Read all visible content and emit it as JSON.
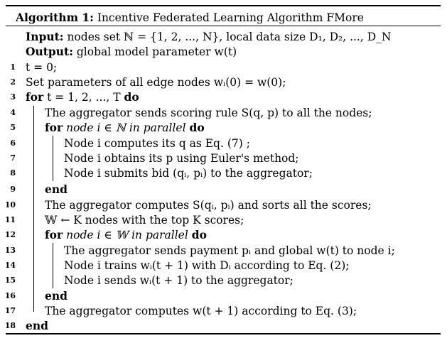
{
  "algorithm": {
    "label": "Algorithm 1:",
    "title": "Incentive Federated Learning Algorithm FMore",
    "input_kw": "Input:",
    "input_text": "nodes set ℕ = {1, 2, ..., N}, local data size D₁, D₂, ..., D_N",
    "output_kw": "Output:",
    "output_text": "global model parameter w(t)",
    "lines": [
      {
        "n": "1",
        "text": "t = 0;"
      },
      {
        "n": "2",
        "text": "Set parameters of all edge nodes wᵢ(0) = w(0);"
      },
      {
        "n": "3",
        "kw": "for",
        "text": "t = 1, 2, ..., T",
        "kw2": "do"
      },
      {
        "n": "4",
        "text": "The aggregator sends scoring rule S(q, p) to all the nodes;"
      },
      {
        "n": "5",
        "kw": "for",
        "text": "node i ∈ ℕ in parallel",
        "kw2": "do"
      },
      {
        "n": "6",
        "text": "Node i computes its q as Eq. (7) ;"
      },
      {
        "n": "7",
        "text": "Node i obtains its p using Euler's method;"
      },
      {
        "n": "8",
        "text": "Node i submits bid (qᵢ, pᵢ) to the aggregator;"
      },
      {
        "n": "9",
        "kw": "end"
      },
      {
        "n": "10",
        "text": "The aggregator computes S(qᵢ, pᵢ) and sorts all the scores;"
      },
      {
        "n": "11",
        "text": "𝕎 ← K nodes with the top K scores;"
      },
      {
        "n": "12",
        "kw": "for",
        "text": "node i ∈ 𝕎 in parallel",
        "kw2": "do"
      },
      {
        "n": "13",
        "text": "The aggregator sends payment pᵢ and global w(t) to node i;"
      },
      {
        "n": "14",
        "text": "Node i trains wᵢ(t + 1) with Dᵢ according to Eq. (2);"
      },
      {
        "n": "15",
        "text": "Node i sends wᵢ(t + 1) to the aggregator;"
      },
      {
        "n": "16",
        "kw": "end"
      },
      {
        "n": "17",
        "text": "The aggregator computes w(t + 1) according to Eq. (3);"
      },
      {
        "n": "18",
        "kw": "end"
      }
    ]
  }
}
